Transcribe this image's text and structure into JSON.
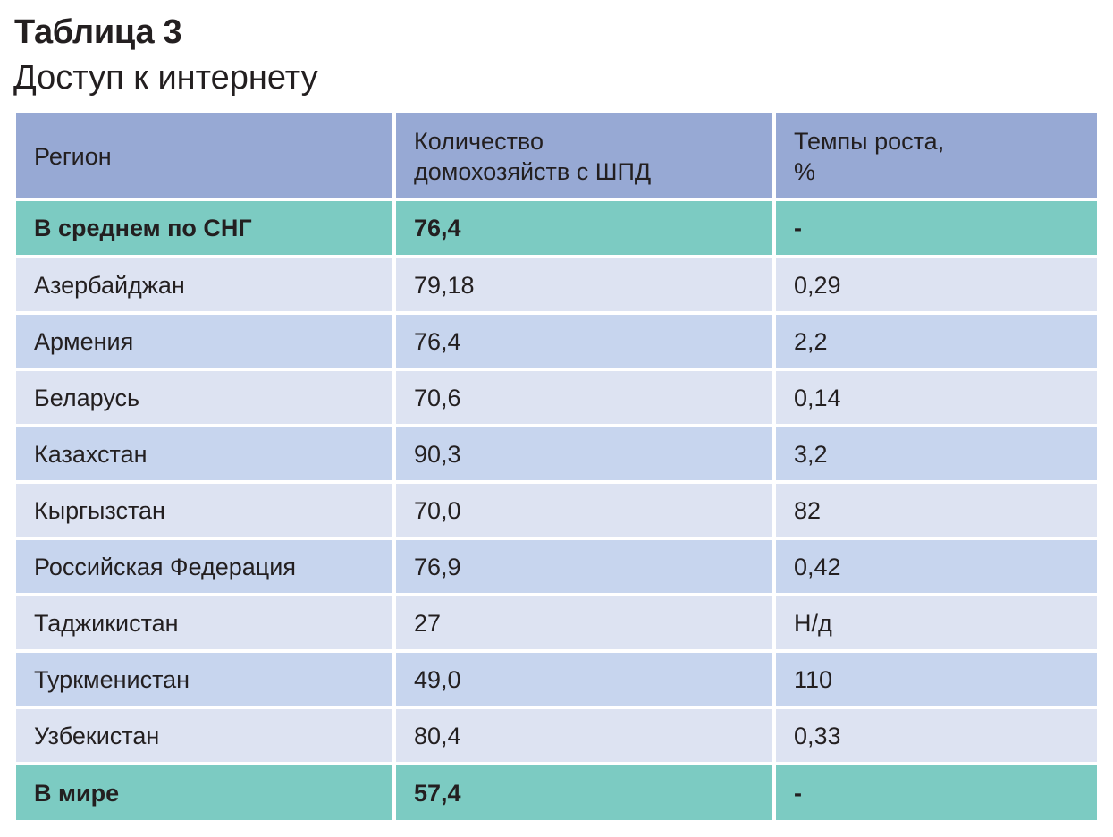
{
  "title": "Таблица 3",
  "subtitle": "Доступ к интернету",
  "colors": {
    "header_bg": "#97a9d4",
    "highlight_bg": "#7ccbc2",
    "row_light_bg": "#dde3f2",
    "row_dark_bg": "#c7d5ee"
  },
  "table": {
    "headers": [
      "Регион",
      "Количество\nдомохозяйств с ШПД",
      "Темпы роста,\n%"
    ],
    "summary_top": [
      "В среднем по СНГ",
      "76,4",
      "-"
    ],
    "rows": [
      [
        "Азербайджан",
        "79,18",
        "0,29"
      ],
      [
        "Армения",
        "76,4",
        "2,2"
      ],
      [
        "Беларусь",
        "70,6",
        "0,14"
      ],
      [
        "Казахстан",
        "90,3",
        "3,2"
      ],
      [
        "Кыргызстан",
        "70,0",
        "82"
      ],
      [
        "Российская Федерация",
        "76,9",
        "0,42"
      ],
      [
        "Таджикистан",
        "27",
        "Н/д"
      ],
      [
        "Туркменистан",
        "49,0",
        "110"
      ],
      [
        "Узбекистан",
        "80,4",
        "0,33"
      ]
    ],
    "summary_bottom": [
      "В мире",
      "57,4",
      "-"
    ]
  }
}
